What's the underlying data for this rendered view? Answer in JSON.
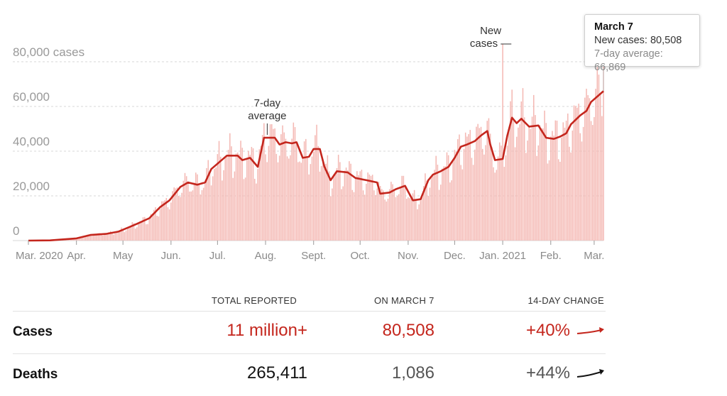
{
  "chart_data": {
    "type": "bar",
    "ylabel_top": "80,000 cases",
    "y_ticks": [
      {
        "value": 0,
        "label": "0"
      },
      {
        "value": 20000,
        "label": "20,000"
      },
      {
        "value": 40000,
        "label": "40,000"
      },
      {
        "value": 60000,
        "label": "60,000"
      },
      {
        "value": 80000,
        "label": "80,000 cases"
      }
    ],
    "ylim": [
      0,
      80000
    ],
    "x_start": "2020-03-01",
    "x_end": "2021-03-07",
    "x_ticks": [
      {
        "date": "2020-03-01",
        "label": "Mar. 2020"
      },
      {
        "date": "2020-04-01",
        "label": "Apr."
      },
      {
        "date": "2020-05-01",
        "label": "May"
      },
      {
        "date": "2020-06-01",
        "label": "Jun."
      },
      {
        "date": "2020-07-01",
        "label": "Jul."
      },
      {
        "date": "2020-08-01",
        "label": "Aug."
      },
      {
        "date": "2020-09-01",
        "label": "Sept."
      },
      {
        "date": "2020-10-01",
        "label": "Oct."
      },
      {
        "date": "2020-11-01",
        "label": "Nov."
      },
      {
        "date": "2020-12-01",
        "label": "Dec."
      },
      {
        "date": "2021-01-01",
        "label": "Jan. 2021"
      },
      {
        "date": "2021-02-01",
        "label": "Feb."
      },
      {
        "date": "2021-03-01",
        "label": "Mar."
      }
    ],
    "average_series": {
      "name": "7-day average",
      "points": [
        [
          "2020-03-01",
          0
        ],
        [
          "2020-03-15",
          100
        ],
        [
          "2020-04-01",
          1000
        ],
        [
          "2020-04-10",
          2500
        ],
        [
          "2020-04-20",
          3000
        ],
        [
          "2020-04-28",
          4000
        ],
        [
          "2020-05-05",
          6000
        ],
        [
          "2020-05-10",
          7500
        ],
        [
          "2020-05-18",
          10000
        ],
        [
          "2020-05-25",
          15000
        ],
        [
          "2020-05-31",
          18000
        ],
        [
          "2020-06-07",
          24000
        ],
        [
          "2020-06-12",
          26000
        ],
        [
          "2020-06-18",
          25000
        ],
        [
          "2020-06-23",
          26000
        ],
        [
          "2020-06-27",
          32000
        ],
        [
          "2020-07-02",
          35000
        ],
        [
          "2020-07-07",
          38000
        ],
        [
          "2020-07-14",
          38000
        ],
        [
          "2020-07-17",
          36000
        ],
        [
          "2020-07-22",
          37000
        ],
        [
          "2020-07-27",
          33000
        ],
        [
          "2020-07-31",
          46000
        ],
        [
          "2020-08-07",
          46000
        ],
        [
          "2020-08-10",
          43000
        ],
        [
          "2020-08-14",
          44000
        ],
        [
          "2020-08-18",
          43500
        ],
        [
          "2020-08-21",
          44000
        ],
        [
          "2020-08-25",
          37000
        ],
        [
          "2020-08-29",
          37500
        ],
        [
          "2020-09-01",
          41000
        ],
        [
          "2020-09-05",
          41000
        ],
        [
          "2020-09-08",
          33000
        ],
        [
          "2020-09-12",
          27000
        ],
        [
          "2020-09-16",
          31000
        ],
        [
          "2020-09-23",
          30500
        ],
        [
          "2020-09-28",
          28000
        ],
        [
          "2020-10-05",
          27000
        ],
        [
          "2020-10-12",
          26000
        ],
        [
          "2020-10-14",
          21000
        ],
        [
          "2020-10-20",
          21500
        ],
        [
          "2020-10-24",
          23000
        ],
        [
          "2020-10-30",
          24500
        ],
        [
          "2020-11-04",
          18000
        ],
        [
          "2020-11-09",
          18500
        ],
        [
          "2020-11-14",
          27000
        ],
        [
          "2020-11-17",
          29500
        ],
        [
          "2020-11-22",
          31000
        ],
        [
          "2020-11-27",
          33000
        ],
        [
          "2020-12-01",
          37000
        ],
        [
          "2020-12-05",
          42000
        ],
        [
          "2020-12-09",
          43000
        ],
        [
          "2020-12-14",
          44500
        ],
        [
          "2020-12-18",
          47000
        ],
        [
          "2020-12-22",
          49000
        ],
        [
          "2020-12-24",
          43000
        ],
        [
          "2020-12-27",
          36000
        ],
        [
          "2021-01-01",
          36500
        ],
        [
          "2021-01-04",
          47000
        ],
        [
          "2021-01-07",
          55000
        ],
        [
          "2021-01-10",
          52500
        ],
        [
          "2021-01-13",
          54500
        ],
        [
          "2021-01-18",
          51000
        ],
        [
          "2021-01-24",
          51500
        ],
        [
          "2021-01-29",
          46000
        ],
        [
          "2021-02-03",
          45500
        ],
        [
          "2021-02-07",
          46500
        ],
        [
          "2021-02-11",
          48000
        ],
        [
          "2021-02-14",
          52000
        ],
        [
          "2021-02-20",
          56000
        ],
        [
          "2021-02-24",
          58000
        ],
        [
          "2021-02-27",
          62000
        ],
        [
          "2021-03-07",
          66869
        ]
      ]
    },
    "bar_series": {
      "name": "New cases",
      "description_note": "Daily bars fluctuate around the 7-day average",
      "spikes": [
        [
          "2021-01-01",
          88000
        ],
        [
          "2021-03-07",
          80508
        ]
      ]
    },
    "annotations": [
      {
        "lines": [
          "7-day",
          "average"
        ],
        "date": "2020-08-03"
      },
      {
        "lines": [
          "New",
          "cases —"
        ],
        "date": "2021-01-01"
      }
    ],
    "colors": {
      "line": "#c4261d",
      "bar": "#f4b8b3",
      "grid": "#d7d7d7"
    }
  },
  "tooltip": {
    "title": "March 7",
    "new_cases": "New cases: 80,508",
    "average": "7-day average: 66,869"
  },
  "stats": {
    "headers": {
      "total": "TOTAL REPORTED",
      "today": "ON MARCH 7",
      "change": "14-DAY CHANGE"
    },
    "rows": [
      {
        "label": "Cases",
        "total": "11 million+",
        "today": "80,508",
        "change": "+40%",
        "trend": "up",
        "color": "#c4261d"
      },
      {
        "label": "Deaths",
        "total": "265,411",
        "today": "1,086",
        "change": "+44%",
        "trend": "up",
        "color": "#121212"
      }
    ]
  }
}
